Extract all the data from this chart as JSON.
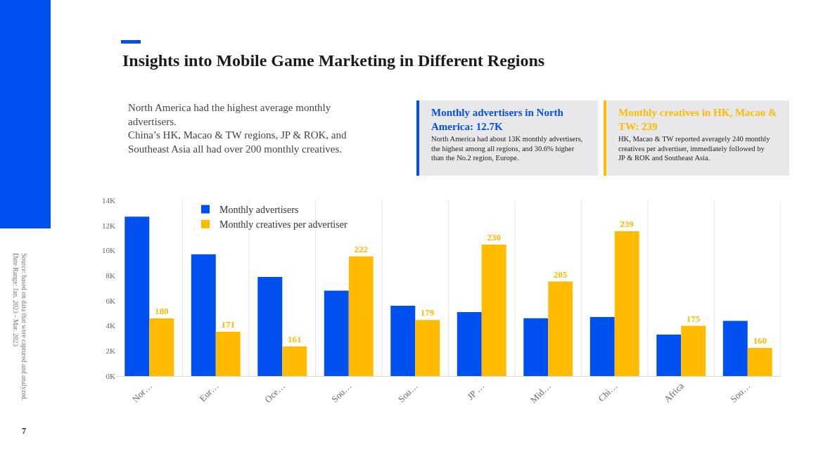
{
  "chart_data": {
    "type": "bar",
    "title": "Insights into Mobile Game Marketing in Different Regions",
    "subtitle": "North America had the highest average monthly advertisers.\nChina’s HK, Macao & TW regions, JP & ROK, and Southeast Asia all had over 200 monthly creatives.",
    "categories": [
      "Nor…",
      "Eur…",
      "Oce…",
      "Sou…",
      "Sou…",
      "JP …",
      "Mid…",
      "Chi…",
      "Africa",
      "Sou…"
    ],
    "series": [
      {
        "name": "Monthly advertisers",
        "color": "#0050f0",
        "values": [
          12.7,
          9.7,
          7.9,
          6.8,
          5.6,
          5.1,
          4.6,
          4.7,
          3.3,
          4.4
        ]
      },
      {
        "name": "Monthly creatives per advertiser",
        "color": "#ffbb00",
        "axis": "y2",
        "values": [
          180,
          171,
          161,
          222,
          179,
          230,
          205,
          239,
          175,
          160
        ],
        "value_labels": [
          "180",
          "171",
          "161",
          "222",
          "179",
          "230",
          "205",
          "239",
          "175",
          "160"
        ]
      }
    ],
    "ylim": [
      0,
      14
    ],
    "yticks": [
      {
        "value": 0,
        "label": "0K"
      },
      {
        "value": 2,
        "label": "2K"
      },
      {
        "value": 4,
        "label": "4K"
      },
      {
        "value": 6,
        "label": "6K"
      },
      {
        "value": 8,
        "label": "8K"
      },
      {
        "value": 10,
        "label": "10K"
      },
      {
        "value": 12,
        "label": "12K"
      },
      {
        "value": 14,
        "label": "14K"
      }
    ],
    "y2lim": [
      141,
      260
    ],
    "tick_labels": "xy",
    "grid": "x",
    "legend": "top left",
    "annotations": [
      "Monthly advertisers in North America: 12.7K",
      "North America had about 13K monthly advertisers, the highest among all regions, and 30.6% higher than the No.2 region, Europe.",
      "Monthly creatives in HK, Macao & TW: 239",
      "HK, Macao & TW reported averagely 240 monthly creatives per advertiser, immediately followed by JP & ROK and Southeast Asia.",
      "Source: based on data that were captured and analyzed.\nDate Range: Jan. 2023 - Mar. 2023",
      "7"
    ]
  }
}
